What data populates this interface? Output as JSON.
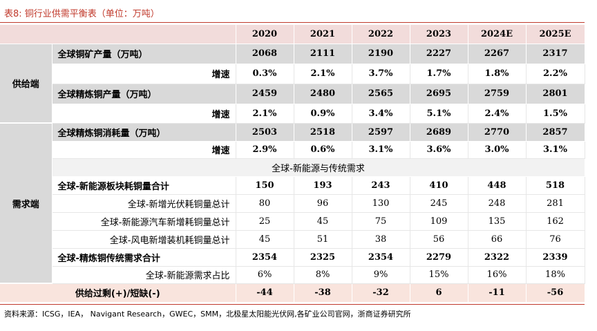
{
  "title": "表8:  铜行业供需平衡表（单位：万吨）",
  "years": [
    "2020",
    "2021",
    "2022",
    "2023",
    "2024E",
    "2025E"
  ],
  "supply_label": "供给端",
  "demand_label": "需求端",
  "rows": {
    "mine": {
      "label": "全球铜矿产量（万吨）",
      "values": [
        "2068",
        "2111",
        "2190",
        "2227",
        "2267",
        "2317"
      ]
    },
    "mine_growth": {
      "label": "增速",
      "values": [
        "0.3%",
        "2.1%",
        "3.7%",
        "1.7%",
        "1.8%",
        "2.2%"
      ]
    },
    "refined": {
      "label": "全球精炼铜产量（万吨）",
      "values": [
        "2459",
        "2480",
        "2565",
        "2695",
        "2759",
        "2801"
      ]
    },
    "refined_growth": {
      "label": "增速",
      "values": [
        "2.1%",
        "0.9%",
        "3.4%",
        "5.1%",
        "2.4%",
        "1.5%"
      ]
    },
    "consumption": {
      "label": "全球精炼铜消耗量（万吨）",
      "values": [
        "2503",
        "2518",
        "2597",
        "2689",
        "2770",
        "2857"
      ]
    },
    "consumption_growth": {
      "label": "增速",
      "values": [
        "2.9%",
        "0.6%",
        "3.1%",
        "3.6%",
        "3.0%",
        "3.1%"
      ]
    },
    "section": {
      "label": "全球-新能源与传统需求"
    },
    "ne_total": {
      "label": "全球-新能源板块耗铜量合计",
      "values": [
        "150",
        "193",
        "243",
        "410",
        "448",
        "518"
      ]
    },
    "pv": {
      "label": "全球-新增光伏耗铜量总计",
      "values": [
        "80",
        "96",
        "130",
        "245",
        "248",
        "281"
      ]
    },
    "ev": {
      "label": "全球-新能源汽车新增耗铜量总计",
      "values": [
        "25",
        "45",
        "75",
        "109",
        "135",
        "162"
      ]
    },
    "wind": {
      "label": "全球-风电新增装机耗铜量总计",
      "values": [
        "45",
        "51",
        "38",
        "56",
        "66",
        "76"
      ]
    },
    "trad_total": {
      "label": "全球-精炼铜传统需求合计",
      "values": [
        "2354",
        "2325",
        "2354",
        "2279",
        "2322",
        "2339"
      ]
    },
    "ne_share": {
      "label": "全球-新能源需求占比",
      "values": [
        "6%",
        "8%",
        "9%",
        "15%",
        "16%",
        "18%"
      ]
    },
    "balance": {
      "label": "供给过剩(+)/短缺(-)",
      "values": [
        "-44",
        "-38",
        "-32",
        "6",
        "-11",
        "-56"
      ]
    }
  },
  "source": "资料来源：ICSG，IEA，  Navigant Research，GWEC，SMM，北极星太阳能光伏网,各矿业公司官网，浙商证券研究所"
}
